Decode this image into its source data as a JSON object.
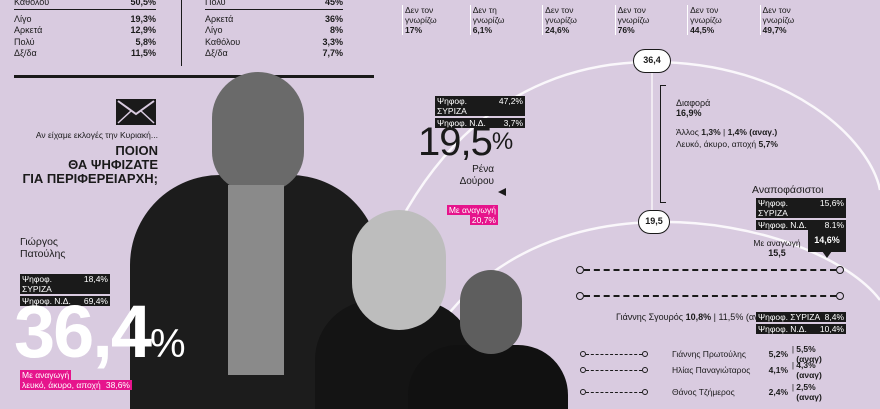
{
  "table_left": {
    "rows": [
      {
        "label": "Καθόλου",
        "value": "50,5%"
      },
      {
        "label": "Λίγο",
        "value": "19,3%"
      },
      {
        "label": "Αρκετά",
        "value": "12,9%"
      },
      {
        "label": "Πολύ",
        "value": "5,8%"
      },
      {
        "label": "Δξ/δα",
        "value": "11,5%"
      }
    ]
  },
  "table_right": {
    "rows": [
      {
        "label": "Πολύ",
        "value": "45%"
      },
      {
        "label": "Αρκετά",
        "value": "36%"
      },
      {
        "label": "Λίγο",
        "value": "8%"
      },
      {
        "label": "Καθόλου",
        "value": "3,3%"
      },
      {
        "label": "Δξ/δα",
        "value": "7,7%"
      }
    ]
  },
  "top_bars": [
    {
      "label": "Δεν τον γνωρίζω",
      "value": "17%"
    },
    {
      "label": "Δεν τη γνωρίζω",
      "value": "6,1%"
    },
    {
      "label": "Δεν τον γνωρίζω",
      "value": "24,6%"
    },
    {
      "label": "Δεν τον γνωρίζω",
      "value": "76%"
    },
    {
      "label": "Δεν τον γνωρίζω",
      "value": "44,5%"
    },
    {
      "label": "Δεν τον γνωρίζω",
      "value": "49,7%"
    }
  ],
  "question": {
    "intro": "Αν είχαμε εκλογές την Κυριακή...",
    "line1": "ΠΟΙΟΝ",
    "line2": "ΘΑ ΨΗΦΙΖΑΤΕ",
    "line3": "ΓΙΑ ΠΕΡΙΦΕΡΕΙΑΡΧΗ;"
  },
  "patoulis": {
    "name1": "Γιώργος",
    "name2": "Πατούλης",
    "syriza_label": "Ψηφοφ. ΣΥΡΙΖΑ",
    "syriza_value": "18,4%",
    "nd_label": "Ψηφοφ. Ν.Δ.",
    "nd_value": "69,4%",
    "big_value": "36,4",
    "big_pct": "%",
    "reduce_label": "Με αναγωγή",
    "blank_label": "λευκό, άκυρο, αποχή",
    "blank_value": "38,6%"
  },
  "dourou": {
    "syriza_label": "Ψηφοφ. ΣΥΡΙΖΑ",
    "syriza_value": "47,2%",
    "nd_label": "Ψηφοφ. Ν.Δ.",
    "nd_value": "3,7%",
    "big_value": "19,5",
    "big_pct": "%",
    "name1": "Ρένα",
    "name2": "Δούρου",
    "reduce_label": "Με αναγωγή",
    "reduce_value": "20,7%"
  },
  "arc": {
    "top_value": "36,4",
    "mid_value": "19,5"
  },
  "diff": {
    "label": "Διαφορά",
    "value": "16,9%",
    "others_label": "Άλλος",
    "others_v1": "1,3%",
    "others_v2": "1,4% (αναγ.)",
    "blank_label": "Λευκό, άκυρο, αποχή",
    "blank_value": "5,7%"
  },
  "undecided": {
    "title": "Αναποφάσιστοι",
    "syriza_label": "Ψηφοφ. ΣΥΡΙΖΑ",
    "syriza_value": "15,6%",
    "nd_label": "Ψηφοφ. Ν.Δ.",
    "nd_value": "8,1%",
    "reduce_label": "Με αναγωγή",
    "reduce_value": "15,5",
    "box_value": "14,6%"
  },
  "sgourou": {
    "text": "Γιάννης Σγουρός",
    "v1": "10,8%",
    "v2": "11,5% (αναγ.)",
    "syriza_label": "Ψηφοφ. ΣΥΡΙΖΑ",
    "syriza_value": "8,4%",
    "nd_label": "Ψηφοφ. Ν.Δ.",
    "nd_value": "10,4%"
  },
  "others": [
    {
      "name": "Γιάννης Πρωτούλης",
      "v1": "5,2%",
      "v2": "5,5% (αναγ)"
    },
    {
      "name": "Ηλίας Παναγιώταρος",
      "v1": "4,1%",
      "v2": "4,3% (αναγ)"
    },
    {
      "name": "Θάνος Τζήμερος",
      "v1": "2,4%",
      "v2": "2,5% (αναγ)"
    }
  ],
  "colors": {
    "background": "#d9cbe0",
    "dark": "#1a1a1a",
    "accent": "#e6148c"
  }
}
